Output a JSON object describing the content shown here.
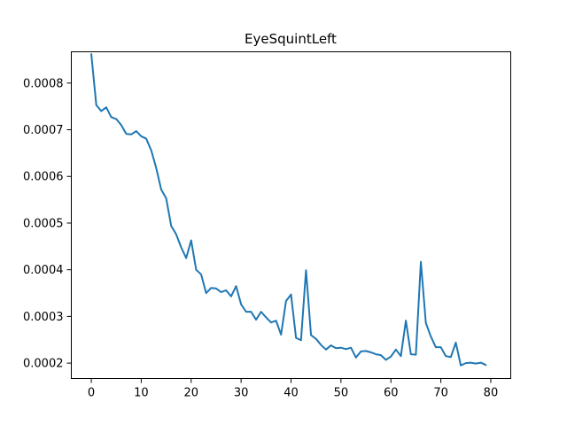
{
  "chart_data": {
    "type": "line",
    "title": "EyeSquintLeft",
    "xlabel": "",
    "ylabel": "",
    "xlim": [
      -4,
      84
    ],
    "ylim": [
      0.000167,
      0.000867
    ],
    "xticks": [
      0,
      10,
      20,
      30,
      40,
      50,
      60,
      70,
      80
    ],
    "yticks": [
      0.0002,
      0.0003,
      0.0004,
      0.0005,
      0.0006,
      0.0007,
      0.0008
    ],
    "ytick_labels": [
      "0.0002",
      "0.0003",
      "0.0004",
      "0.0005",
      "0.0006",
      "0.0007",
      "0.0008"
    ],
    "grid": false,
    "line_color": "#1f77b4",
    "series": [
      {
        "x": [
          0,
          1,
          2,
          3,
          4,
          5,
          6,
          7,
          8,
          9,
          10,
          11,
          12,
          13,
          14,
          15,
          16,
          17,
          18,
          19,
          20,
          21,
          22,
          23,
          24,
          25,
          26,
          27,
          28,
          29,
          30,
          31,
          32,
          33,
          34,
          35,
          36,
          37,
          38,
          39,
          40,
          41,
          42,
          43,
          44,
          45,
          46,
          47,
          48,
          49,
          50,
          51,
          52,
          53,
          54,
          55,
          56,
          57,
          58,
          59,
          60,
          61,
          62,
          63,
          64,
          65,
          66,
          67,
          68,
          69,
          70,
          71,
          72,
          73,
          74,
          75,
          76,
          77,
          78,
          79
        ],
        "values": [
          0.000862,
          0.000753,
          0.00074,
          0.000748,
          0.000727,
          0.000723,
          0.00071,
          0.000691,
          0.00069,
          0.000697,
          0.000686,
          0.000681,
          0.000656,
          0.000618,
          0.000572,
          0.000553,
          0.000494,
          0.000476,
          0.000448,
          0.000425,
          0.000463,
          0.0004,
          0.00039,
          0.00035,
          0.000361,
          0.00036,
          0.000352,
          0.000356,
          0.000343,
          0.000365,
          0.000326,
          0.00031,
          0.00031,
          0.000293,
          0.00031,
          0.000298,
          0.000287,
          0.000291,
          0.000261,
          0.000333,
          0.000347,
          0.000254,
          0.000249,
          0.000399,
          0.00026,
          0.000252,
          0.000239,
          0.000229,
          0.000238,
          0.000232,
          0.000233,
          0.00023,
          0.000233,
          0.000212,
          0.000225,
          0.000226,
          0.000223,
          0.000219,
          0.000217,
          0.000207,
          0.000214,
          0.000229,
          0.000215,
          0.000291,
          0.000219,
          0.000218,
          0.000417,
          0.000286,
          0.000257,
          0.000234,
          0.000234,
          0.000215,
          0.000213,
          0.000244,
          0.000195,
          0.0002,
          0.000201,
          0.000199,
          0.000201,
          0.000196
        ]
      }
    ]
  }
}
